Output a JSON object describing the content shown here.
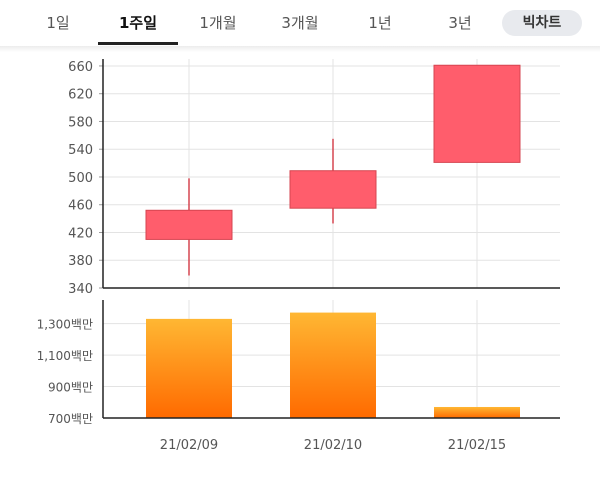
{
  "tabs": [
    {
      "label": "1일",
      "active": false
    },
    {
      "label": "1주일",
      "active": true
    },
    {
      "label": "1개월",
      "active": false
    },
    {
      "label": "3개월",
      "active": false
    },
    {
      "label": "1년",
      "active": false
    },
    {
      "label": "3년",
      "active": false
    }
  ],
  "big_chart_button": "빅차트",
  "colors": {
    "candle": "#ff5d6c",
    "candle_edge": "#d64550",
    "volume_top": "#ffb733",
    "volume_bottom": "#ff6a00",
    "grid": "#e3e3e3",
    "axis": "#222222"
  },
  "chart_data": [
    {
      "type": "candlestick",
      "categories": [
        "21/02/09",
        "21/02/10",
        "21/02/15"
      ],
      "candles": [
        {
          "open": 410,
          "close": 452,
          "high": 498,
          "low": 358
        },
        {
          "open": 455,
          "close": 509,
          "high": 555,
          "low": 433
        },
        {
          "open": 521,
          "close": 661,
          "high": 661,
          "low": 521
        }
      ],
      "yticks": [
        "660",
        "620",
        "580",
        "540",
        "500",
        "460",
        "420",
        "380",
        "340"
      ],
      "ytick_values": [
        660,
        620,
        580,
        540,
        500,
        460,
        420,
        380,
        340
      ],
      "ylim": [
        340,
        670
      ],
      "grid": true
    },
    {
      "type": "bar",
      "categories": [
        "21/02/09",
        "21/02/10",
        "21/02/15"
      ],
      "values": [
        1330,
        1370,
        770
      ],
      "yticks": [
        "1,300백만",
        "1,100백만",
        "900백만",
        "700백만"
      ],
      "ytick_values": [
        1300,
        1100,
        900,
        700
      ],
      "ylim": [
        700,
        1450
      ],
      "unit": "백만",
      "grid": true
    }
  ]
}
